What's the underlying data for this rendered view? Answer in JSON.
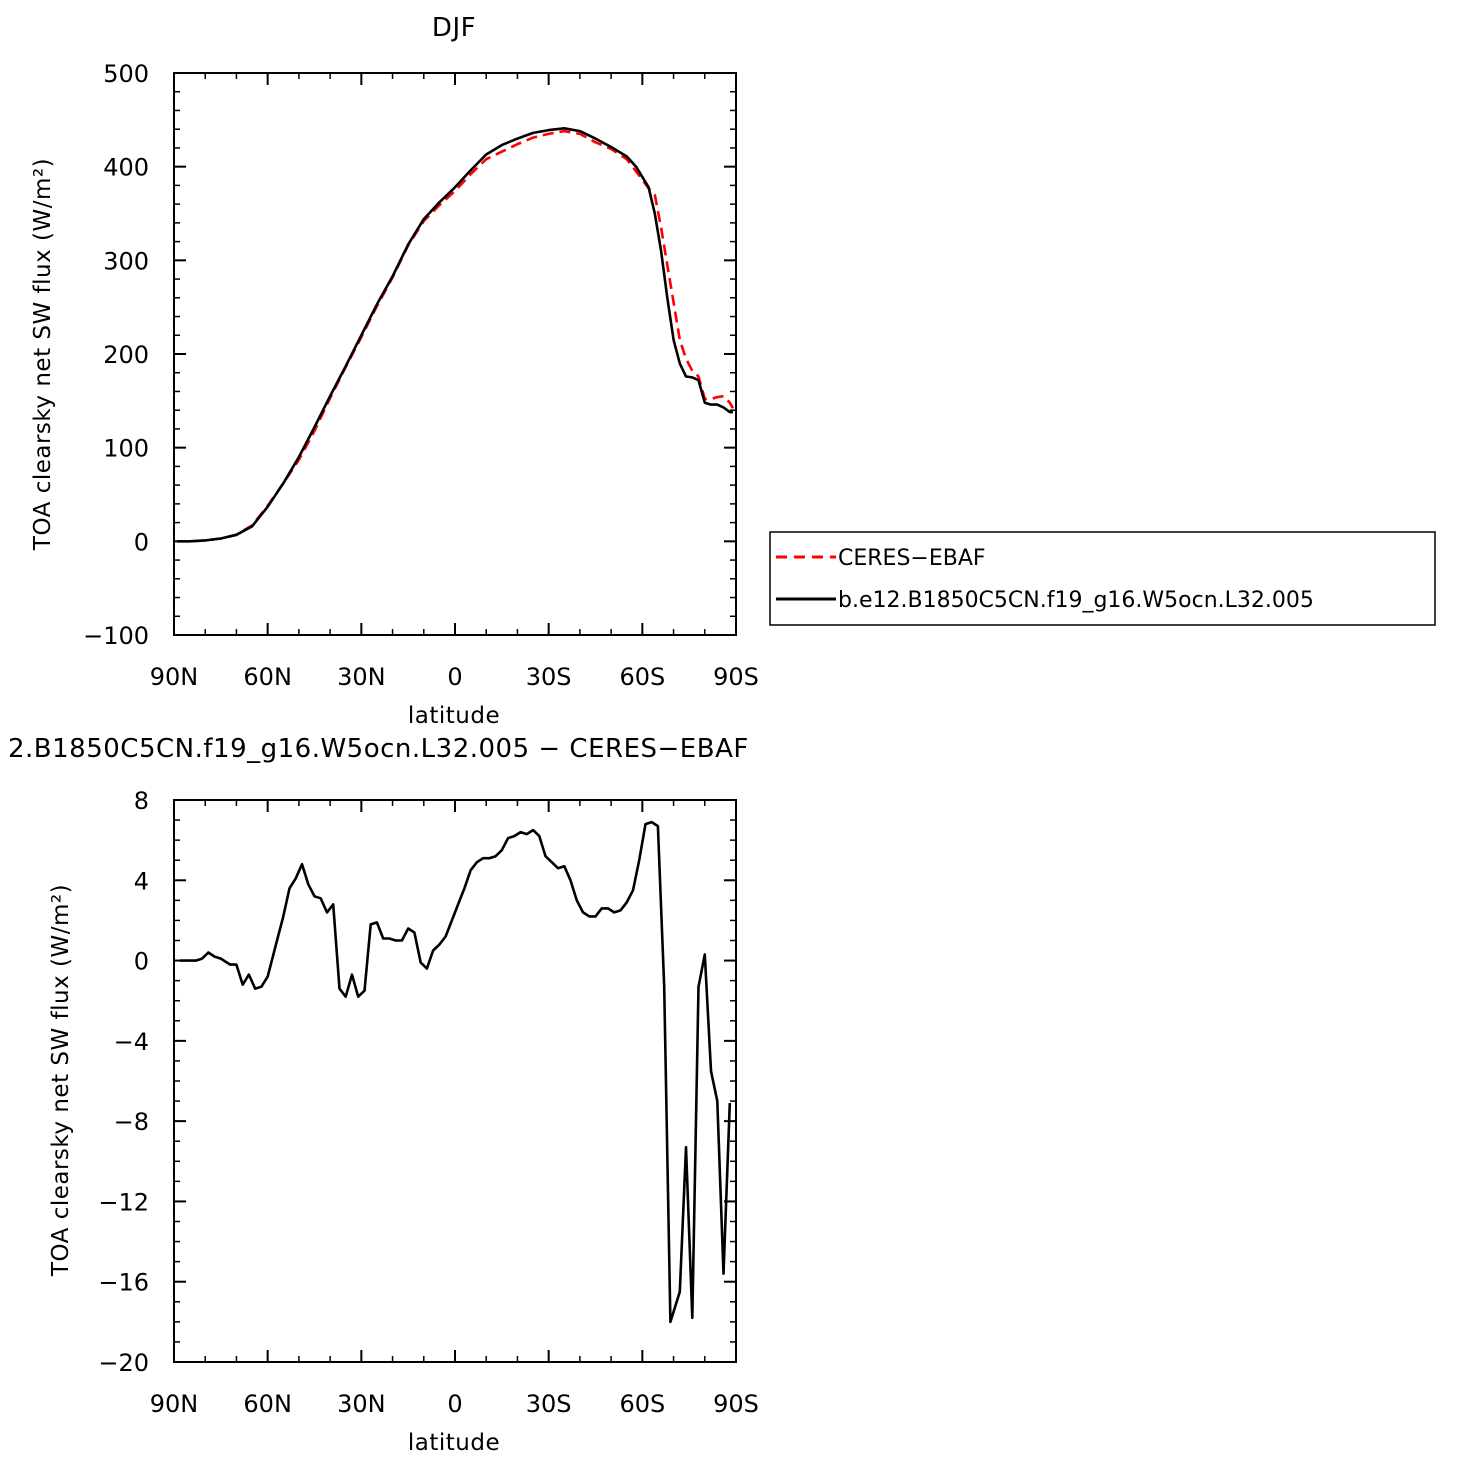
{
  "chart_data": [
    {
      "type": "line",
      "title": "DJF",
      "xlabel": "latitude",
      "ylabel": "TOA clearsky net SW flux (W/m²)",
      "xlim": [
        90,
        -90
      ],
      "ylim": [
        -100,
        500
      ],
      "x_ticks": [
        90,
        60,
        30,
        0,
        -30,
        -60,
        -90
      ],
      "x_tick_labels": [
        "90N",
        "60N",
        "30N",
        "0",
        "30S",
        "60S",
        "90S"
      ],
      "y_ticks": [
        -100,
        0,
        100,
        200,
        300,
        400,
        500
      ],
      "y_tick_labels": [
        "−100",
        "0",
        "100",
        "200",
        "300",
        "400",
        "500"
      ],
      "legend": {
        "position": "right",
        "entries": [
          "CERES−EBAF",
          "b.e12.B1850C5CN.f19_g16.W5ocn.L32.005"
        ]
      },
      "series": [
        {
          "name": "CERES−EBAF",
          "color": "#ff0000",
          "dash": "dashed",
          "x": [
            89,
            85,
            80,
            75,
            70,
            65,
            60,
            55,
            50,
            45,
            40,
            35,
            30,
            25,
            20,
            15,
            10,
            5,
            0,
            -5,
            -10,
            -15,
            -20,
            -25,
            -30,
            -35,
            -40,
            -45,
            -50,
            -55,
            -58,
            -62,
            -64,
            -66,
            -68,
            -70,
            -72,
            -74,
            -76,
            -78,
            -80,
            -82,
            -84,
            -86,
            -88,
            -89
          ],
          "y": [
            0,
            0,
            1,
            3,
            7,
            17,
            38,
            62,
            87,
            118,
            153,
            186,
            218,
            251,
            282,
            316,
            342,
            359,
            374,
            392,
            408,
            416,
            424,
            431,
            435,
            438,
            435,
            426,
            419,
            408,
            395,
            377,
            370,
            335,
            295,
            255,
            215,
            195,
            182,
            176,
            152,
            152,
            154,
            155,
            148,
            142
          ]
        },
        {
          "name": "b.e12.B1850C5CN.f19_g16.W5ocn.L32.005",
          "color": "#000000",
          "dash": "solid",
          "x": [
            89,
            85,
            80,
            75,
            70,
            65,
            60,
            55,
            50,
            45,
            40,
            35,
            30,
            25,
            20,
            15,
            10,
            5,
            0,
            -5,
            -10,
            -15,
            -20,
            -25,
            -30,
            -35,
            -40,
            -45,
            -50,
            -55,
            -58,
            -62,
            -64,
            -66,
            -68,
            -70,
            -72,
            -74,
            -76,
            -78,
            -80,
            -82,
            -84,
            -86,
            -88,
            -89
          ],
          "y": [
            0,
            0,
            1,
            3,
            7,
            16,
            37,
            62,
            90,
            122,
            155,
            187,
            220,
            253,
            283,
            317,
            344,
            362,
            378,
            396,
            413,
            423,
            430,
            436,
            439,
            441,
            438,
            430,
            421,
            411,
            400,
            378,
            350,
            310,
            260,
            215,
            190,
            176,
            175,
            172,
            148,
            146,
            146,
            143,
            138,
            138
          ]
        }
      ]
    },
    {
      "type": "line",
      "title": "2.B1850C5CN.f19_g16.W5ocn.L32.005 − CERES−EBAF",
      "xlabel": "latitude",
      "ylabel": "TOA clearsky net SW flux (W/m²)",
      "xlim": [
        90,
        -90
      ],
      "ylim": [
        -20,
        8
      ],
      "x_ticks": [
        90,
        60,
        30,
        0,
        -30,
        -60,
        -90
      ],
      "x_tick_labels": [
        "90N",
        "60N",
        "30N",
        "0",
        "30S",
        "60S",
        "90S"
      ],
      "y_ticks": [
        -20,
        -16,
        -12,
        -8,
        -4,
        0,
        4,
        8
      ],
      "y_tick_labels": [
        "−20",
        "−16",
        "−12",
        "−8",
        "−4",
        "0",
        "4",
        "8"
      ],
      "series": [
        {
          "color": "#000000",
          "dash": "solid",
          "x": [
            88,
            83,
            81,
            79,
            77,
            75,
            72,
            70,
            68,
            66,
            64,
            62,
            60,
            57,
            55,
            53,
            51,
            49,
            47,
            45,
            43,
            41,
            39,
            37,
            35,
            33,
            31,
            29,
            27,
            25,
            23,
            21,
            19,
            17,
            15,
            13,
            11,
            9,
            7,
            5,
            3,
            1,
            -1,
            -3,
            -5,
            -7,
            -9,
            -11,
            -13,
            -15,
            -17,
            -19,
            -21,
            -23,
            -25,
            -27,
            -29,
            -31,
            -33,
            -35,
            -37,
            -39,
            -41,
            -43,
            -45,
            -47,
            -49,
            -51,
            -53,
            -55,
            -57,
            -59,
            -61,
            -63,
            -65,
            -67,
            -69,
            -72,
            -74,
            -76,
            -78,
            -80,
            -82,
            -84,
            -86,
            -88
          ],
          "y": [
            0,
            0,
            0.1,
            0.4,
            0.2,
            0.1,
            -0.2,
            -0.2,
            -1.2,
            -0.7,
            -1.4,
            -1.3,
            -0.8,
            1.0,
            2.2,
            3.6,
            4.1,
            4.8,
            3.8,
            3.2,
            3.1,
            2.4,
            2.8,
            -1.4,
            -1.8,
            -0.7,
            -1.8,
            -1.5,
            1.8,
            1.9,
            1.1,
            1.1,
            1.0,
            1.0,
            1.6,
            1.4,
            -0.1,
            -0.4,
            0.5,
            0.8,
            1.2,
            2.0,
            2.8,
            3.6,
            4.5,
            4.9,
            5.1,
            5.1,
            5.2,
            5.5,
            6.1,
            6.2,
            6.4,
            6.3,
            6.5,
            6.2,
            5.2,
            4.9,
            4.6,
            4.7,
            4.0,
            3.0,
            2.4,
            2.2,
            2.2,
            2.6,
            2.6,
            2.4,
            2.5,
            2.9,
            3.5,
            5.0,
            6.8,
            6.9,
            6.7,
            -1.3,
            -18.0,
            -16.5,
            -9.3,
            -17.8,
            -1.3,
            0.3,
            -5.5,
            -7.0,
            -15.6,
            -7.1
          ]
        }
      ]
    }
  ]
}
